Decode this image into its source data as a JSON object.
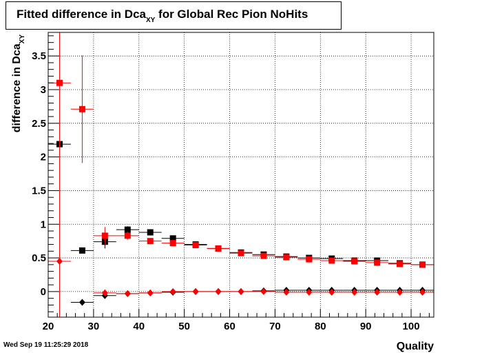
{
  "title": {
    "main": "Fitted difference in Dca",
    "subscript": "XY",
    "suffix": " for Global Rec Pion NoHits"
  },
  "timestamp": "Wed Sep 19 11:25:29 2018",
  "chart_data": {
    "type": "scatter",
    "title": "Fitted difference in Dca_XY for Global Rec Pion NoHits",
    "xlabel": "Quality",
    "ylabel": "difference in Dca_XY",
    "xlim": [
      20,
      105
    ],
    "ylim": [
      -0.38,
      3.85
    ],
    "xticks": [
      20,
      30,
      40,
      50,
      60,
      70,
      80,
      90,
      100
    ],
    "yticks": [
      0,
      0.5,
      1,
      1.5,
      2,
      2.5,
      3,
      3.5
    ],
    "grid": true,
    "x_bin_half_width": 2.5,
    "series": [
      {
        "color": "#000000",
        "marker": "square",
        "x": [
          22.5,
          27.5,
          32.5,
          37.5,
          42.5,
          47.5,
          52.5,
          57.5,
          62.5,
          67.5,
          72.5,
          77.5,
          82.5,
          87.5,
          92.5,
          97.5,
          102.5
        ],
        "y": [
          2.19,
          0.61,
          0.74,
          0.92,
          0.88,
          0.79,
          0.7,
          0.64,
          0.58,
          0.55,
          0.52,
          0.5,
          0.49,
          0.46,
          0.46,
          0.42,
          0.4
        ],
        "yerr": [
          0.0,
          0.04,
          0.1,
          0.05,
          0.03,
          0.02,
          0.02,
          0.02,
          0.02,
          0.02,
          0.02,
          0.02,
          0.02,
          0.02,
          0.02,
          0.02,
          0.02
        ]
      },
      {
        "color": "#ff0000",
        "marker": "square",
        "x": [
          22.5,
          27.5,
          32.5,
          37.5,
          42.5,
          47.5,
          52.5,
          57.5,
          62.5,
          67.5,
          72.5,
          77.5,
          82.5,
          87.5,
          92.5,
          97.5,
          102.5
        ],
        "y": [
          3.1,
          2.71,
          0.83,
          0.83,
          0.75,
          0.72,
          0.69,
          0.64,
          0.57,
          0.53,
          0.51,
          0.48,
          0.46,
          0.45,
          0.43,
          0.41,
          0.4
        ],
        "yerr": [
          3.6,
          0.8,
          0.13,
          0.06,
          0.03,
          0.02,
          0.02,
          0.02,
          0.02,
          0.02,
          0.02,
          0.02,
          0.02,
          0.02,
          0.02,
          0.02,
          0.02
        ]
      },
      {
        "color": "#000000",
        "marker": "diamond",
        "x": [
          27.5,
          32.5,
          37.5,
          42.5,
          47.5,
          52.5,
          57.5,
          62.5,
          67.5,
          72.5,
          77.5,
          82.5,
          87.5,
          92.5,
          97.5,
          102.5
        ],
        "y": [
          -0.16,
          -0.06,
          -0.03,
          -0.02,
          -0.01,
          0.0,
          0.0,
          0.0,
          0.01,
          0.02,
          0.02,
          0.02,
          0.02,
          0.02,
          0.02,
          0.02
        ],
        "yerr": [
          0.02,
          0.02,
          0.02,
          0.01,
          0.01,
          0.01,
          0.01,
          0.01,
          0.01,
          0.01,
          0.01,
          0.01,
          0.01,
          0.01,
          0.01,
          0.01
        ]
      },
      {
        "color": "#ff0000",
        "marker": "diamond",
        "x": [
          22.5,
          32.5,
          37.5,
          42.5,
          47.5,
          52.5,
          57.5,
          62.5,
          67.5,
          72.5,
          77.5,
          82.5,
          87.5,
          92.5,
          97.5,
          102.5
        ],
        "y": [
          0.45,
          -0.02,
          -0.03,
          -0.02,
          0.0,
          0.0,
          0.0,
          0.0,
          0.0,
          -0.01,
          -0.01,
          -0.01,
          -0.01,
          -0.01,
          -0.01,
          -0.01
        ],
        "yerr": [
          0.0,
          0.05,
          0.01,
          0.01,
          0.01,
          0.01,
          0.01,
          0.01,
          0.01,
          0.01,
          0.01,
          0.01,
          0.01,
          0.01,
          0.01,
          0.01
        ]
      }
    ]
  }
}
